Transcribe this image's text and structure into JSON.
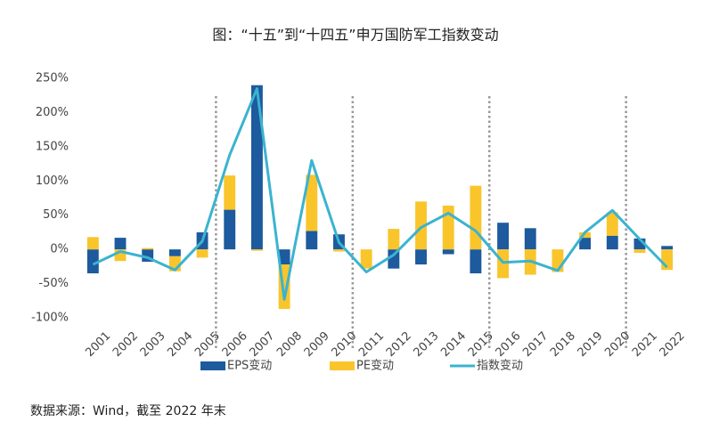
{
  "chart_data": {
    "type": "stacked-bar-line",
    "title": "图：“十五”到“十四五”申万国防军工指数变动",
    "source": "数据来源：Wind，截至 2022 年末",
    "categories": [
      "2001",
      "2002",
      "2003",
      "2004",
      "2005",
      "2006",
      "2007",
      "2008",
      "2009",
      "2010",
      "2011",
      "2012",
      "2013",
      "2014",
      "2015",
      "2016",
      "2017",
      "2018",
      "2019",
      "2020",
      "2021",
      "2022"
    ],
    "series": [
      {
        "name": "EPS变动",
        "type": "bar",
        "color": "#1d5a9e",
        "values": [
          -35,
          17,
          -18,
          -10,
          25,
          58,
          240,
          -22,
          27,
          22,
          0,
          -28,
          -22,
          -7,
          -35,
          39,
          31,
          0,
          17,
          20,
          16,
          5
        ]
      },
      {
        "name": "PE变动",
        "type": "bar",
        "color": "#f9c52b",
        "values": [
          18,
          -17,
          2,
          -22,
          -12,
          50,
          -2,
          -65,
          82,
          -3,
          -28,
          30,
          70,
          64,
          93,
          -42,
          -37,
          -33,
          8,
          34,
          -5,
          -30
        ]
      },
      {
        "name": "指数变动",
        "type": "line",
        "color": "#3bb3d0",
        "values": [
          -22,
          -3,
          -12,
          -30,
          12,
          138,
          235,
          -73,
          130,
          10,
          -33,
          -8,
          32,
          53,
          27,
          -19,
          -17,
          -31,
          25,
          57,
          15,
          -26
        ]
      }
    ],
    "ylim": [
      -100,
      250
    ],
    "yticks": [
      {
        "value": -100,
        "label": "-100%"
      },
      {
        "value": -50,
        "label": "-50%"
      },
      {
        "value": 0,
        "label": "0%"
      },
      {
        "value": 50,
        "label": "50%"
      },
      {
        "value": 100,
        "label": "100%"
      },
      {
        "value": 150,
        "label": "150%"
      },
      {
        "value": 200,
        "label": "200%"
      },
      {
        "value": 250,
        "label": "250%"
      }
    ],
    "grid": false,
    "legend": "bottom"
  }
}
